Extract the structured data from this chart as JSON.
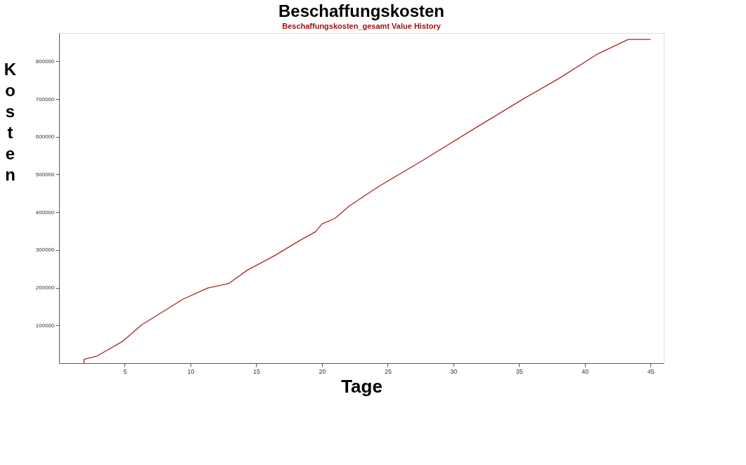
{
  "chart_data": {
    "type": "line",
    "title": "Beschaffungskosten",
    "subtitle": "Beschaffungskosten_gesamt Value History",
    "xlabel": "Tage",
    "ylabel": "Kosten",
    "x": [
      1.9,
      1.9,
      2.9,
      4.8,
      6.3,
      8.2,
      9.4,
      11.3,
      12.9,
      14.3,
      16.4,
      18.4,
      19.5,
      20.0,
      21.0,
      22.1,
      24.4,
      27.7,
      31.7,
      35.4,
      38.1,
      41.0,
      43.3,
      45.0
    ],
    "series": [
      {
        "color": "#b22222",
        "values": [
          0,
          10000,
          19000,
          57000,
          102000,
          143000,
          169000,
          199000,
          211000,
          246000,
          285000,
          327000,
          348000,
          369000,
          384000,
          417000,
          470000,
          538000,
          624000,
          702000,
          756000,
          820000,
          858000,
          858000
        ]
      }
    ],
    "xlim": [
      0,
      46
    ],
    "ylim": [
      0,
      875000
    ],
    "xticks": [
      5,
      10,
      15,
      20,
      25,
      30,
      35,
      40,
      45
    ],
    "yticks": [
      100000,
      200000,
      300000,
      400000,
      500000,
      600000,
      700000,
      800000
    ],
    "grid": false,
    "legend": false
  }
}
